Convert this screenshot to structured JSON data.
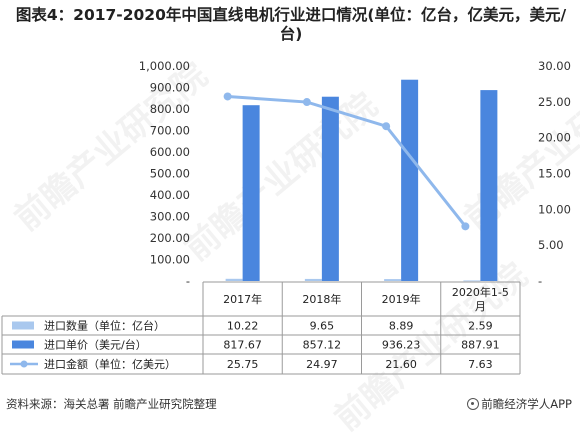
{
  "title": "图表4：2017-2020年中国直线电机行业进口情况(单位：亿台，亿美元，美元/台)",
  "chart_data": {
    "type": "bar+line",
    "title": "图表4：2017-2020年中国直线电机行业进口情况(单位：亿台，亿美元，美元/台)",
    "categories": [
      "2017年",
      "2018年",
      "2019年",
      "2020年1-5月"
    ],
    "series": [
      {
        "name": "进口数量（单位：亿台）",
        "type": "bar",
        "axis": "left",
        "values": [
          10.22,
          9.65,
          8.89,
          2.59
        ],
        "color": "#a9c8ee"
      },
      {
        "name": "进口单价（美元/台）",
        "type": "bar",
        "axis": "left",
        "values": [
          817.67,
          857.12,
          936.23,
          887.91
        ],
        "color": "#4a86de"
      },
      {
        "name": "进口金额（单位：亿美元）",
        "type": "line",
        "axis": "right",
        "values": [
          25.75,
          24.97,
          21.6,
          7.63
        ],
        "color": "#8fb8ec"
      }
    ],
    "y_left": {
      "ylim": [
        0,
        1000
      ],
      "ticks": [
        "-",
        "100.00",
        "200.00",
        "300.00",
        "400.00",
        "500.00",
        "600.00",
        "700.00",
        "800.00",
        "900.00",
        "1,000.00"
      ]
    },
    "y_right": {
      "ylim": [
        0,
        30
      ],
      "ticks": [
        "-",
        "5.00",
        "10.00",
        "15.00",
        "20.00",
        "25.00",
        "30.00"
      ]
    },
    "table": {
      "header": [
        "2017年",
        "2018年",
        "2019年",
        "2020年1-5\n月"
      ],
      "rows": [
        [
          "10.22",
          "9.65",
          "8.89",
          "2.59"
        ],
        [
          "817.67",
          "857.12",
          "936.23",
          "887.91"
        ],
        [
          "25.75",
          "24.97",
          "21.60",
          "7.63"
        ]
      ]
    },
    "grid": false,
    "legend": "table-left"
  },
  "footer": {
    "source": "资料来源：海关总署 前瞻产业研究院整理",
    "brand": "前瞻经济学人APP"
  },
  "watermark": "前瞻产业研究院"
}
